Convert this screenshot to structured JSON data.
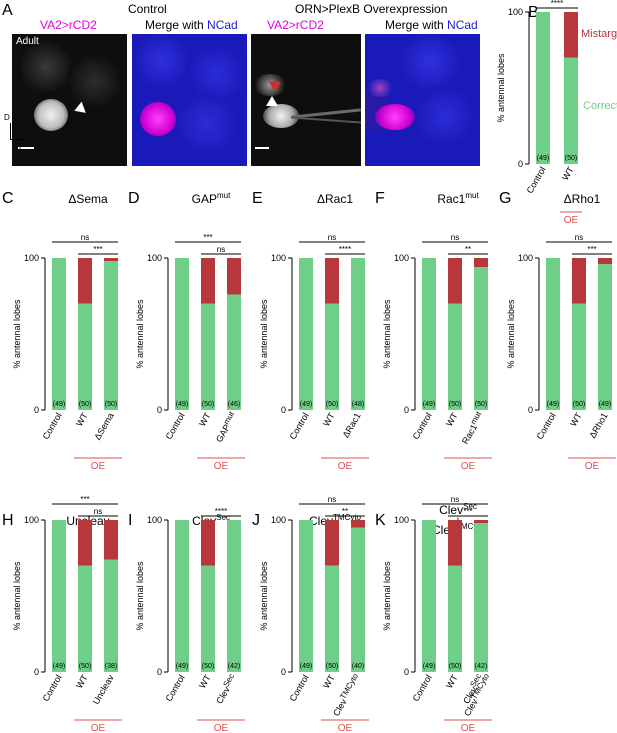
{
  "panelA": {
    "label": "A",
    "control_title": "Control",
    "oe_title": "ORN>PlexB Overexpression",
    "channel_label": "VA2>rCD2",
    "merge_prefix": "Merge with ",
    "merge_stain": "NCad",
    "age_label": "Adult",
    "axis_d": "D",
    "axis_l": "L"
  },
  "panelB": {
    "label": "B",
    "legend_mistarget": "Mistarget",
    "legend_correct": "Correct"
  },
  "chart_data": [
    {
      "type": "bar",
      "panel": "B",
      "title": "",
      "ylabel": "% antennal lobes",
      "ylim": [
        0,
        100
      ],
      "yticks": [
        0,
        100
      ],
      "categories": [
        "Control",
        "WT"
      ],
      "correct": [
        100,
        70
      ],
      "mistarget": [
        0,
        30
      ],
      "n": [
        "(49)",
        "(50)"
      ],
      "group_label": "OE",
      "significance": [
        {
          "text": "****",
          "from": 0,
          "to": 1
        }
      ]
    },
    {
      "type": "bar",
      "panel": "C",
      "title": "ΔSema",
      "ylabel": "% antennal lobes",
      "ylim": [
        0,
        100
      ],
      "yticks": [
        0,
        100
      ],
      "categories": [
        "Control",
        "WT",
        "ΔSema"
      ],
      "correct": [
        100,
        70,
        98
      ],
      "mistarget": [
        0,
        30,
        2
      ],
      "n": [
        "(49)",
        "(50)",
        "(50)"
      ],
      "group_label": "OE",
      "significance": [
        {
          "text": "ns",
          "from": 0,
          "to": 2
        },
        {
          "text": "***",
          "from": 1,
          "to": 2
        }
      ]
    },
    {
      "type": "bar",
      "panel": "D",
      "title": "GAPmut",
      "ylabel": "% antennal lobes",
      "ylim": [
        0,
        100
      ],
      "yticks": [
        0,
        100
      ],
      "categories": [
        "Control",
        "WT",
        "GAPmut"
      ],
      "correct": [
        100,
        70,
        76
      ],
      "mistarget": [
        0,
        30,
        24
      ],
      "n": [
        "(49)",
        "(50)",
        "(46)"
      ],
      "group_label": "OE",
      "significance": [
        {
          "text": "***",
          "from": 0,
          "to": 2
        },
        {
          "text": "ns",
          "from": 1,
          "to": 2
        }
      ]
    },
    {
      "type": "bar",
      "panel": "E",
      "title": "ΔRac1",
      "ylabel": "% antennal lobes",
      "ylim": [
        0,
        100
      ],
      "yticks": [
        0,
        100
      ],
      "categories": [
        "Control",
        "WT",
        "ΔRac1"
      ],
      "correct": [
        100,
        70,
        100
      ],
      "mistarget": [
        0,
        30,
        0
      ],
      "n": [
        "(49)",
        "(50)",
        "(48)"
      ],
      "group_label": "OE",
      "significance": [
        {
          "text": "ns",
          "from": 0,
          "to": 2
        },
        {
          "text": "****",
          "from": 1,
          "to": 2
        }
      ]
    },
    {
      "type": "bar",
      "panel": "F",
      "title": "Rac1mut",
      "ylabel": "% antennal lobes",
      "ylim": [
        0,
        100
      ],
      "yticks": [
        0,
        100
      ],
      "categories": [
        "Control",
        "WT",
        "Rac1mut"
      ],
      "correct": [
        100,
        70,
        94
      ],
      "mistarget": [
        0,
        30,
        6
      ],
      "n": [
        "(49)",
        "(50)",
        "(50)"
      ],
      "group_label": "OE",
      "significance": [
        {
          "text": "ns",
          "from": 0,
          "to": 2
        },
        {
          "text": "**",
          "from": 1,
          "to": 2
        }
      ]
    },
    {
      "type": "bar",
      "panel": "G",
      "title": "ΔRho1",
      "ylabel": "% antennal lobes",
      "ylim": [
        0,
        100
      ],
      "yticks": [
        0,
        100
      ],
      "categories": [
        "Control",
        "WT",
        "ΔRho1"
      ],
      "correct": [
        100,
        70,
        96
      ],
      "mistarget": [
        0,
        30,
        4
      ],
      "n": [
        "(49)",
        "(50)",
        "(49)"
      ],
      "group_label": "OE",
      "significance": [
        {
          "text": "ns",
          "from": 0,
          "to": 2
        },
        {
          "text": "***",
          "from": 1,
          "to": 2
        }
      ]
    },
    {
      "type": "bar",
      "panel": "H",
      "title": "Uncleav",
      "ylabel": "% antennal lobes",
      "ylim": [
        0,
        100
      ],
      "yticks": [
        0,
        100
      ],
      "categories": [
        "Control",
        "WT",
        "Uncleav"
      ],
      "correct": [
        100,
        70,
        74
      ],
      "mistarget": [
        0,
        30,
        26
      ],
      "n": [
        "(49)",
        "(50)",
        "(38)"
      ],
      "group_label": "OE",
      "significance": [
        {
          "text": "***",
          "from": 0,
          "to": 2
        },
        {
          "text": "ns",
          "from": 1,
          "to": 2
        }
      ]
    },
    {
      "type": "bar",
      "panel": "I",
      "title": "ClevSec",
      "ylabel": "% antennal lobes",
      "ylim": [
        0,
        100
      ],
      "yticks": [
        0,
        100
      ],
      "categories": [
        "Control",
        "WT",
        "ClevSec"
      ],
      "correct": [
        100,
        70,
        100
      ],
      "mistarget": [
        0,
        30,
        0
      ],
      "n": [
        "(49)",
        "(50)",
        "(42)"
      ],
      "group_label": "OE",
      "significance": [
        {
          "text": "****",
          "from": 1,
          "to": 2
        }
      ]
    },
    {
      "type": "bar",
      "panel": "J",
      "title": "ClevTMCyto",
      "ylabel": "% antennal lobes",
      "ylim": [
        0,
        100
      ],
      "yticks": [
        0,
        100
      ],
      "categories": [
        "Control",
        "WT",
        "ClevTMCyto"
      ],
      "correct": [
        100,
        70,
        95
      ],
      "mistarget": [
        0,
        30,
        5
      ],
      "n": [
        "(49)",
        "(50)",
        "(40)"
      ],
      "group_label": "OE",
      "significance": [
        {
          "text": "ns",
          "from": 0,
          "to": 2
        },
        {
          "text": "**",
          "from": 1,
          "to": 2
        }
      ]
    },
    {
      "type": "bar",
      "panel": "K",
      "title": "ClevSec + ClevTMCyto",
      "ylabel": "% antennal lobes",
      "ylim": [
        0,
        100
      ],
      "yticks": [
        0,
        100
      ],
      "categories": [
        "Control",
        "WT",
        "ClevSec ClevTMCyto"
      ],
      "correct": [
        100,
        70,
        98
      ],
      "mistarget": [
        0,
        30,
        2
      ],
      "n": [
        "(49)",
        "(50)",
        "(42)"
      ],
      "group_label": "OE",
      "significance": [
        {
          "text": "ns",
          "from": 0,
          "to": 2
        },
        {
          "text": "***",
          "from": 1,
          "to": 2
        }
      ]
    }
  ],
  "colors": {
    "correct": "#6fcf89",
    "mistarget": "#b8373a",
    "oe_label": "#d9534f",
    "magenta": "#e000e0",
    "ncad_blue": "#1b1bd8"
  }
}
